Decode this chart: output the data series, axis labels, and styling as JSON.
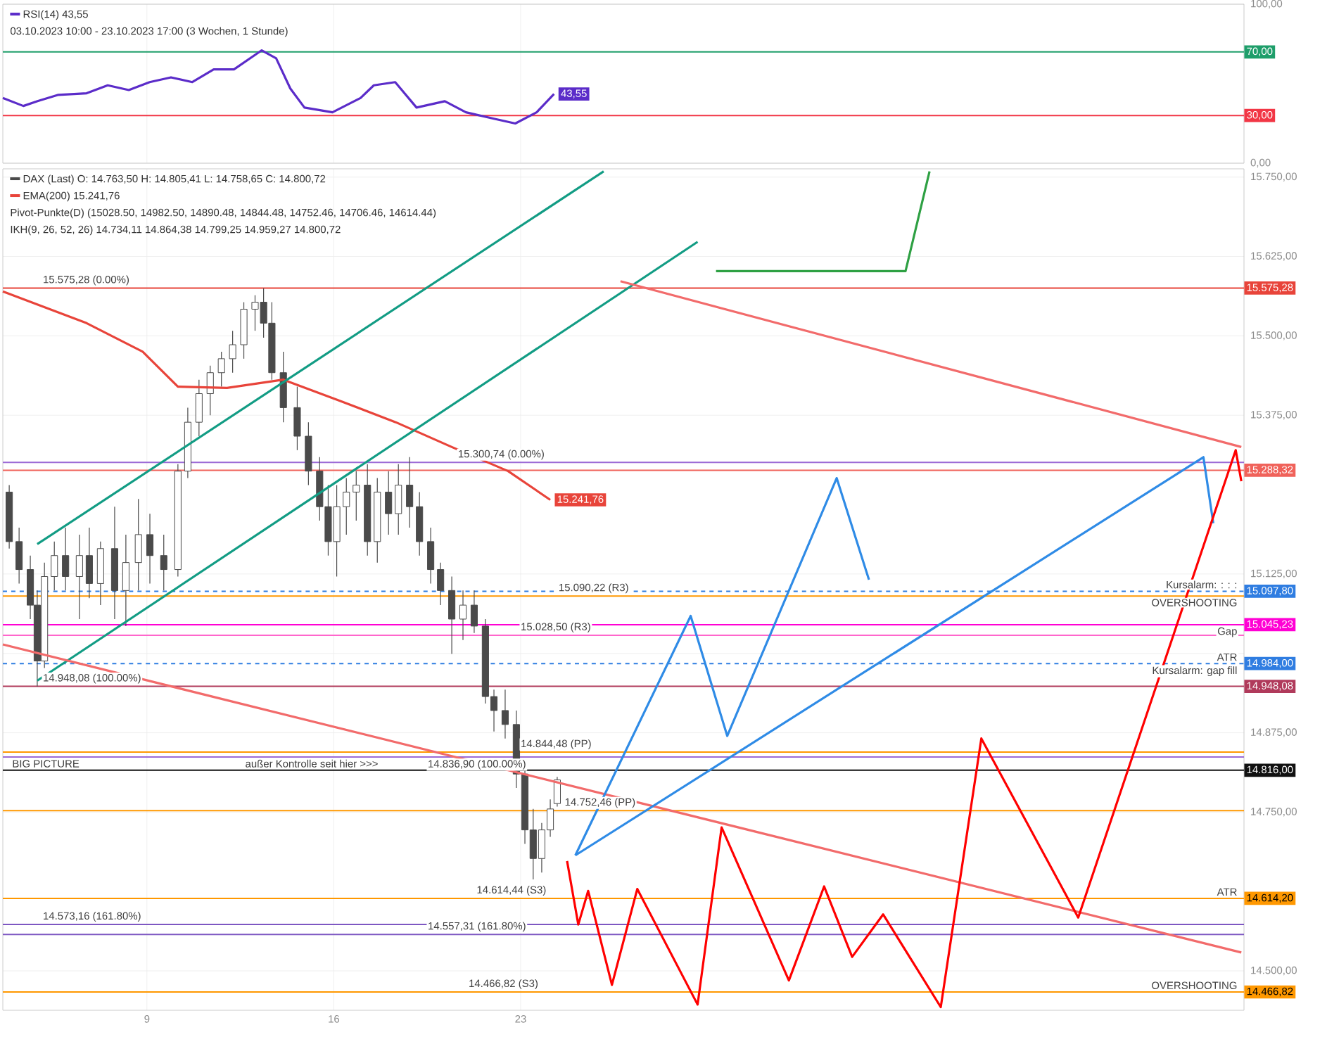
{
  "chart_data": [
    {
      "type": "line",
      "xlim": [
        3.6,
        50.1
      ],
      "ylim": [
        0,
        100
      ],
      "xticks": [
        9,
        16,
        23
      ],
      "yticks": [
        {
          "value": 0,
          "label": "0,00"
        },
        {
          "value": 100,
          "label": "100,00"
        }
      ],
      "tick_labels": "y",
      "grid": true,
      "legend": "top left",
      "series": [
        {
          "name": "RSI(14) 43,55",
          "color": "#5b2cc9",
          "x": [
            3.6,
            4.37,
            4.9,
            5.68,
            6.74,
            7.53,
            8.32,
            9.1,
            9.9,
            10.7,
            11.5,
            12.26,
            13.3,
            13.84,
            14.37,
            14.9,
            15.95,
            17,
            17.5,
            18.3,
            19.1,
            20.16,
            20.95,
            22,
            22.8,
            23.6,
            24.25
          ],
          "values": [
            41,
            36,
            39,
            43,
            44,
            49,
            46,
            51,
            54,
            51,
            59,
            59,
            71,
            66,
            47,
            35,
            32,
            41,
            49,
            51,
            35,
            39,
            32,
            28,
            25,
            32,
            43.55
          ],
          "value_labels": [
            null,
            null,
            null,
            null,
            null,
            null,
            null,
            null,
            null,
            null,
            null,
            null,
            null,
            null,
            null,
            null,
            null,
            null,
            null,
            null,
            null,
            null,
            null,
            null,
            null,
            null,
            "43,55"
          ]
        }
      ],
      "ref_lines": [
        {
          "axis": "y",
          "value": 70,
          "label": "70,00",
          "color": "#1e9e6a"
        },
        {
          "axis": "y",
          "value": 30,
          "label": "30,00",
          "color": "#f23645"
        }
      ],
      "annotations": [
        "03.10.2023 10:00 - 23.10.2023 17:00 (3 Wochen, 1 Stunde)"
      ]
    },
    {
      "type": "candlestick",
      "xlim": [
        3.6,
        50.1
      ],
      "ylim": [
        14438,
        15763
      ],
      "xticks": [
        9,
        16,
        23
      ],
      "yticks": [
        {
          "value": 15750,
          "label": "15.750,00"
        },
        {
          "value": 15625,
          "label": "15.625,00"
        },
        {
          "value": 15500,
          "label": "15.500,00"
        },
        {
          "value": 15375,
          "label": "15.375,00"
        },
        {
          "value": 15125,
          "label": "15.125,00"
        },
        {
          "value": 15000,
          "label": null
        },
        {
          "value": 14875,
          "label": "14.875,00"
        },
        {
          "value": 14750,
          "label": "14.750,00"
        },
        {
          "value": 14500,
          "label": "14.500,00"
        }
      ],
      "grid": true,
      "legend": "top left",
      "series": [
        {
          "type": "candlestick",
          "name": "DAX (Last) O: 14.763,50 H: 14.805,41 L: 14.758,65 C: 14.800,72",
          "color": "#4a4a4a",
          "x": [
            3.84,
            4.21,
            4.63,
            4.89,
            5.16,
            5.53,
            5.95,
            6.47,
            6.84,
            7.26,
            7.79,
            8.21,
            8.68,
            9.11,
            9.63,
            10.16,
            10.53,
            10.95,
            11.37,
            11.79,
            12.21,
            12.63,
            13.05,
            13.37,
            13.68,
            14.11,
            14.63,
            15.05,
            15.47,
            15.79,
            16.11,
            16.47,
            16.84,
            17.26,
            17.63,
            18.05,
            18.42,
            18.84,
            19.21,
            19.63,
            20,
            20.42,
            20.84,
            21.26,
            21.68,
            22,
            22.42,
            22.84,
            23.16,
            23.47,
            23.79,
            24.11,
            24.37
          ],
          "ohlc": [
            [
              15254,
              15265,
              15165,
              15176
            ],
            [
              15176,
              15198,
              15110,
              15132
            ],
            [
              15132,
              15154,
              15054,
              15076
            ],
            [
              15076,
              15099,
              14948,
              14988
            ],
            [
              14988,
              15143,
              14977,
              15121
            ],
            [
              15121,
              15176,
              15099,
              15154
            ],
            [
              15154,
              15198,
              15099,
              15121
            ],
            [
              15121,
              15187,
              15054,
              15154
            ],
            [
              15154,
              15198,
              15087,
              15110
            ],
            [
              15110,
              15176,
              15076,
              15165
            ],
            [
              15165,
              15231,
              15054,
              15099
            ],
            [
              15099,
              15187,
              15043,
              15143
            ],
            [
              15143,
              15243,
              15099,
              15187
            ],
            [
              15187,
              15220,
              15110,
              15154
            ],
            [
              15154,
              15187,
              15099,
              15132
            ],
            [
              15132,
              15298,
              15121,
              15287
            ],
            [
              15287,
              15387,
              15276,
              15364
            ],
            [
              15364,
              15431,
              15342,
              15409
            ],
            [
              15409,
              15453,
              15375,
              15442
            ],
            [
              15442,
              15475,
              15420,
              15464
            ],
            [
              15464,
              15508,
              15442,
              15486
            ],
            [
              15486,
              15553,
              15464,
              15542
            ],
            [
              15542,
              15564,
              15508,
              15553
            ],
            [
              15553,
              15575,
              15497,
              15520
            ],
            [
              15520,
              15553,
              15431,
              15442
            ],
            [
              15442,
              15475,
              15364,
              15387
            ],
            [
              15387,
              15420,
              15320,
              15342
            ],
            [
              15342,
              15364,
              15265,
              15287
            ],
            [
              15287,
              15309,
              15209,
              15231
            ],
            [
              15231,
              15265,
              15154,
              15176
            ],
            [
              15176,
              15265,
              15121,
              15231
            ],
            [
              15231,
              15276,
              15187,
              15254
            ],
            [
              15254,
              15287,
              15209,
              15265
            ],
            [
              15265,
              15298,
              15154,
              15176
            ],
            [
              15176,
              15276,
              15143,
              15254
            ],
            [
              15254,
              15287,
              15187,
              15220
            ],
            [
              15220,
              15298,
              15187,
              15265
            ],
            [
              15265,
              15309,
              15198,
              15231
            ],
            [
              15231,
              15254,
              15154,
              15176
            ],
            [
              15176,
              15198,
              15110,
              15132
            ],
            [
              15132,
              15143,
              15076,
              15099
            ],
            [
              15099,
              15121,
              14999,
              15054
            ],
            [
              15054,
              15099,
              15021,
              15076
            ],
            [
              15076,
              15099,
              15032,
              15043
            ],
            [
              15043,
              15054,
              14921,
              14932
            ],
            [
              14932,
              14943,
              14877,
              14910
            ],
            [
              14910,
              14943,
              14866,
              14888
            ],
            [
              14888,
              14910,
              14788,
              14810
            ],
            [
              14810,
              14822,
              14700,
              14722
            ],
            [
              14722,
              14755,
              14644,
              14677
            ],
            [
              14677,
              14733,
              14655,
              14722
            ],
            [
              14722,
              14770,
              14711,
              14755
            ],
            [
              14763.5,
              14805.41,
              14758.65,
              14800.72
            ]
          ]
        },
        {
          "type": "line",
          "name": "EMA(200) 15.241,76",
          "color": "#e8443a",
          "x": [
            3.6,
            6.74,
            8.84,
            10.16,
            12,
            14.11,
            16.21,
            18.32,
            20.42,
            22.53,
            24.11
          ],
          "values": [
            15570,
            15520,
            15475,
            15420,
            15418,
            15431,
            15398,
            15364,
            15325,
            15287,
            15241.76
          ],
          "value_labels": [
            null,
            null,
            null,
            null,
            null,
            null,
            null,
            null,
            null,
            null,
            "15.241,76"
          ]
        },
        {
          "type": "line",
          "color": "#129c84",
          "x": [
            4.89,
            26.11
          ],
          "values": [
            15172,
            15759
          ]
        },
        {
          "type": "line",
          "color": "#129c84",
          "x": [
            4.89,
            29.63
          ],
          "values": [
            14957,
            15648
          ]
        },
        {
          "type": "line",
          "color": "#f26b6b",
          "x": [
            26.74,
            50
          ],
          "values": [
            15586,
            15325
          ]
        },
        {
          "type": "line",
          "color": "#f26b6b",
          "x": [
            3.6,
            50
          ],
          "values": [
            15014,
            14529
          ]
        },
        {
          "type": "line",
          "color": "#2ea043",
          "x": [
            30.32,
            37.42,
            38.32
          ],
          "values": [
            15602,
            15602,
            15759
          ]
        },
        {
          "type": "line",
          "color": "#2f8be6",
          "x": [
            25.05,
            29.37,
            30.74,
            34.84,
            36.05
          ],
          "values": [
            14682,
            15059,
            14870,
            15276,
            15116
          ]
        },
        {
          "type": "line",
          "color": "#2f8be6",
          "x": [
            25.05,
            48.58,
            48.95
          ],
          "values": [
            14682,
            15309,
            15205
          ]
        },
        {
          "type": "line",
          "color": "#ff0000",
          "x": [
            24.74,
            25.16,
            25.53,
            26.42,
            27.37,
            29.63,
            30.53,
            33.05,
            34.37,
            35.42,
            36.58,
            38.74,
            40.26,
            43.89,
            49.79,
            50
          ],
          "values": [
            14673,
            14573,
            14626,
            14478,
            14629,
            14447,
            14726,
            14485,
            14633,
            14522,
            14589,
            14443,
            14866,
            14584,
            15320,
            15271
          ]
        }
      ],
      "ref_lines": [
        {
          "axis": "y",
          "value": 15575.28,
          "label": "15.575,28",
          "color": "#e8443a"
        },
        {
          "axis": "y",
          "value": 15300.74,
          "color": "#9c6ad6"
        },
        {
          "axis": "y",
          "value": 15288.32,
          "label": "15.288,32",
          "color": "#f0625a"
        },
        {
          "axis": "y",
          "value": 15097.8,
          "label": "15.097,80",
          "color": "#2f7de1",
          "line_style": "dashed"
        },
        {
          "axis": "y",
          "value": 15090.22,
          "color": "#ff9800"
        },
        {
          "axis": "y",
          "value": 15045.23,
          "label": "15.045,23",
          "color": "#ff00d4"
        },
        {
          "axis": "y",
          "value": 15028.5,
          "color": "#ff66cc"
        },
        {
          "axis": "y",
          "value": 14984,
          "label": "14.984,00",
          "color": "#2f7de1",
          "line_style": "dashed"
        },
        {
          "axis": "y",
          "value": 14948.08,
          "label": "14.948,08",
          "color": "#b03a5b"
        },
        {
          "axis": "y",
          "value": 14844.48,
          "color": "#ff9800"
        },
        {
          "axis": "y",
          "value": 14836.9,
          "color": "#9c6ad6"
        },
        {
          "axis": "y",
          "value": 14752.46,
          "color": "#ff9800"
        },
        {
          "axis": "y",
          "value": 14816,
          "label": "14.816,00",
          "color": "#111111"
        },
        {
          "axis": "y",
          "value": 14614.2,
          "label": "14.614,20",
          "color": "#ff9800"
        },
        {
          "axis": "y",
          "value": 14573.16,
          "color": "#7e57c2"
        },
        {
          "axis": "y",
          "value": 14557.31,
          "color": "#7e57c2"
        },
        {
          "axis": "y",
          "value": 14466.82,
          "label": "14.466,82",
          "color": "#ff9800"
        }
      ],
      "annotations": [
        "Pivot-Punkte(D) (15028.50, 14982.50, 14890.48, 14844.48, 14752.46, 14706.46, 14614.44)",
        "IKH(9, 26, 52, 26) 14.734,11 14.864,38 14.799,25 14.959,27 14.800,72",
        {
          "text": "15.575,28 (0.00%)",
          "x": 5.05,
          "y": 15575.28
        },
        {
          "text": "15.300,74 (0.00%)",
          "x": 20.6,
          "y": 15300.74
        },
        {
          "text": "15.090,22 (R3)",
          "x": 24.37,
          "y": 15090.22
        },
        {
          "text": "15.028,50 (R3)",
          "x": 22.95,
          "y": 15028.5
        },
        {
          "text": "14.948,08 (100.00%)",
          "x": 5.05,
          "y": 14948.08
        },
        {
          "text": "14.844,48 (PP)",
          "x": 22.95,
          "y": 14844.48
        },
        {
          "text": "14.836,90 (100.00%)",
          "x": 19.47,
          "y": 14836.9
        },
        {
          "text": "14.752,46 (PP)",
          "x": 24.6,
          "y": 14752.46
        },
        {
          "text": "14.614,44 (S3)",
          "x": 21.3,
          "y": 14614.2
        },
        {
          "text": "14.573,16 (161.80%)",
          "x": 5.05,
          "y": 14573.16
        },
        {
          "text": "14.557,31 (161.80%)",
          "x": 19.47,
          "y": 14557.31
        },
        {
          "text": "14.466,82 (S3)",
          "x": 21.0,
          "y": 14466.82
        },
        {
          "text": "BIG PICTURE",
          "x": 3.9,
          "y": 14816
        },
        {
          "text": "außer Kontrolle seit hier >>>",
          "x": 12.63,
          "y": 14816
        },
        {
          "text": "Kursalarm: : : :",
          "x": 49.9,
          "y": 15097.8
        },
        {
          "text": "OVERSHOOTING",
          "x": 49.9,
          "y": 15090.22
        },
        {
          "text": "Gap",
          "x": 49.9,
          "y": 15045.23
        },
        {
          "text": "ATR",
          "x": 49.9,
          "y": 14984
        },
        {
          "text": "Kursalarm: gap fill",
          "x": 49.9,
          "y": 14984
        },
        {
          "text": "ATR",
          "x": 49.9,
          "y": 14614.2
        },
        {
          "text": "OVERSHOOTING",
          "x": 49.9,
          "y": 14466.82
        }
      ]
    }
  ]
}
